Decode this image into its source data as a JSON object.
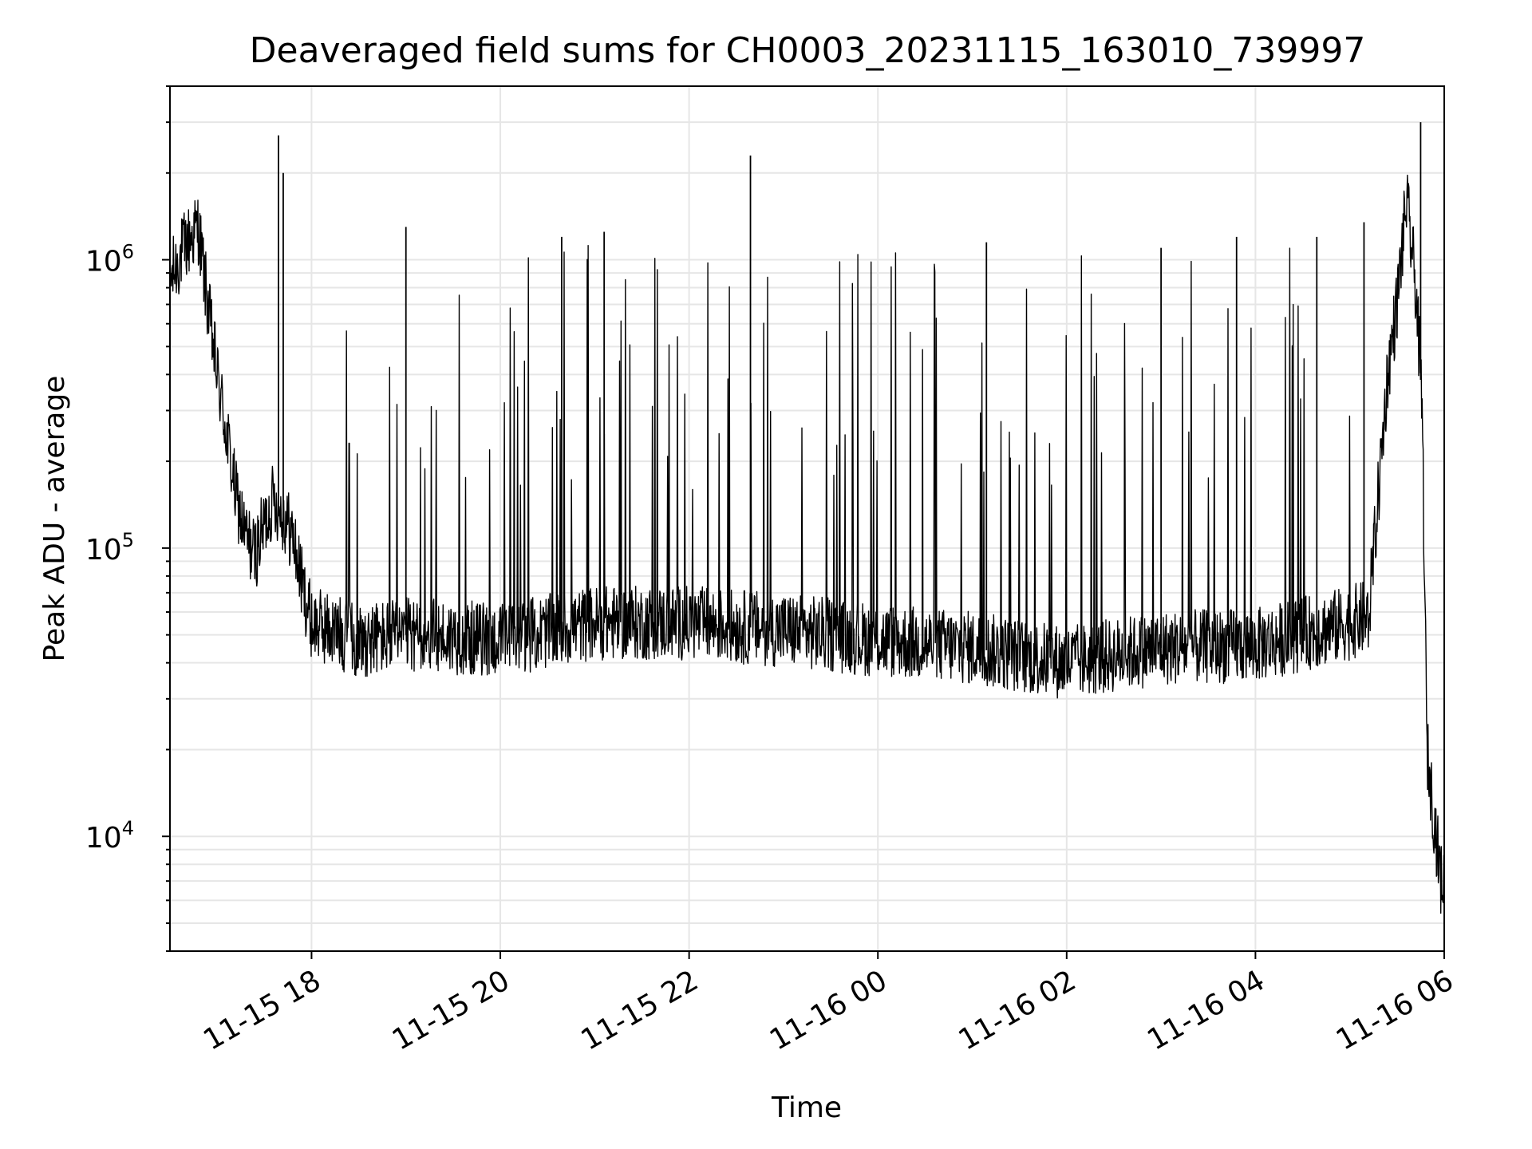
{
  "chart_data": {
    "type": "line",
    "title": "Deaveraged field sums for CH0003_20231115_163010_739997",
    "xlabel": "Time",
    "ylabel": "Peak ADU - average",
    "yscale": "log",
    "ylim": [
      4000,
      4000000
    ],
    "xlim": [
      "2023-11-15 16:30",
      "2023-11-16 06:00"
    ],
    "x_ticks": [
      "11-15 18",
      "11-15 20",
      "11-15 22",
      "11-16 00",
      "11-16 02",
      "11-16 04",
      "11-16 06"
    ],
    "x_tick_times": [
      "2023-11-15 18:00",
      "2023-11-15 20:00",
      "2023-11-15 22:00",
      "2023-11-16 00:00",
      "2023-11-16 02:00",
      "2023-11-16 04:00",
      "2023-11-16 06:00"
    ],
    "y_ticks": [
      {
        "value": 10000,
        "base": "10",
        "exp": "4"
      },
      {
        "value": 100000,
        "base": "10",
        "exp": "5"
      },
      {
        "value": 1000000,
        "base": "10",
        "exp": "6"
      }
    ],
    "grid": true,
    "line_color": "#000000",
    "grid_color": "#e6e6e6",
    "series": [
      {
        "points": [
          {
            "x": "2023-11-15 16:30",
            "y": 850000
          },
          {
            "x": "2023-11-15 16:39",
            "y": 1100000
          },
          {
            "x": "2023-11-15 16:48",
            "y": 1300000
          },
          {
            "x": "2023-11-15 16:54",
            "y": 700000
          },
          {
            "x": "2023-11-15 17:00",
            "y": 400000
          },
          {
            "x": "2023-11-15 17:06",
            "y": 250000
          },
          {
            "x": "2023-11-15 17:12",
            "y": 150000
          },
          {
            "x": "2023-11-15 17:18",
            "y": 110000
          },
          {
            "x": "2023-11-15 17:24",
            "y": 95000
          },
          {
            "x": "2023-11-15 17:30",
            "y": 120000
          },
          {
            "x": "2023-11-15 17:36",
            "y": 150000
          },
          {
            "x": "2023-11-15 17:42",
            "y": 130000
          },
          {
            "x": "2023-11-15 17:48",
            "y": 110000
          },
          {
            "x": "2023-11-15 17:54",
            "y": 75000
          },
          {
            "x": "2023-11-15 18:00",
            "y": 55000
          },
          {
            "x": "2023-11-15 18:30",
            "y": 48000
          },
          {
            "x": "2023-11-15 19:00",
            "y": 50000
          },
          {
            "x": "2023-11-15 20:00",
            "y": 48000
          },
          {
            "x": "2023-11-15 21:00",
            "y": 55000
          },
          {
            "x": "2023-11-15 22:00",
            "y": 55000
          },
          {
            "x": "2023-11-15 23:00",
            "y": 52000
          },
          {
            "x": "2023-11-16 00:00",
            "y": 48000
          },
          {
            "x": "2023-11-16 01:00",
            "y": 45000
          },
          {
            "x": "2023-11-16 02:00",
            "y": 40000
          },
          {
            "x": "2023-11-16 03:00",
            "y": 45000
          },
          {
            "x": "2023-11-16 04:00",
            "y": 46000
          },
          {
            "x": "2023-11-16 05:00",
            "y": 55000
          },
          {
            "x": "2023-11-16 05:12",
            "y": 58000
          },
          {
            "x": "2023-11-16 05:18",
            "y": 150000
          },
          {
            "x": "2023-11-16 05:24",
            "y": 400000
          },
          {
            "x": "2023-11-16 05:30",
            "y": 700000
          },
          {
            "x": "2023-11-16 05:36",
            "y": 1600000
          },
          {
            "x": "2023-11-16 05:42",
            "y": 800000
          },
          {
            "x": "2023-11-16 05:46",
            "y": 300000
          },
          {
            "x": "2023-11-16 05:49",
            "y": 20000
          },
          {
            "x": "2023-11-16 05:54",
            "y": 11000
          },
          {
            "x": "2023-11-16 05:58",
            "y": 7000
          }
        ],
        "spikes": [
          {
            "x": "2023-11-15 17:39",
            "y": 2700000
          },
          {
            "x": "2023-11-15 17:42",
            "y": 2000000
          },
          {
            "x": "2023-11-15 19:00",
            "y": 1300000
          },
          {
            "x": "2023-11-15 20:39",
            "y": 1200000
          },
          {
            "x": "2023-11-15 21:06",
            "y": 1250000
          },
          {
            "x": "2023-11-15 22:39",
            "y": 2300000
          },
          {
            "x": "2023-11-16 01:09",
            "y": 1150000
          },
          {
            "x": "2023-11-16 03:00",
            "y": 1100000
          },
          {
            "x": "2023-11-16 03:48",
            "y": 1200000
          },
          {
            "x": "2023-11-16 04:39",
            "y": 1200000
          },
          {
            "x": "2023-11-16 05:09",
            "y": 1350000
          },
          {
            "x": "2023-11-16 05:45",
            "y": 3000000
          }
        ]
      }
    ]
  }
}
